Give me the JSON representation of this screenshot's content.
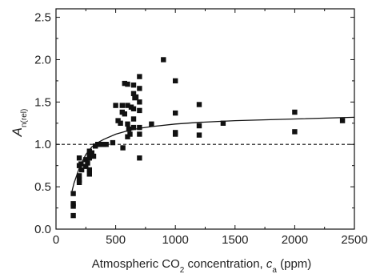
{
  "chart_data": {
    "type": "scatter",
    "xlabel": {
      "prefix": "Atmospheric CO",
      "sub1": "2",
      "middle": " concentration, ",
      "italic": "c",
      "sub2": "a",
      "suffix": "  (ppm)"
    },
    "ylabel": {
      "italic": "A",
      "sub": "n(rel)"
    },
    "xlim": [
      0,
      2500
    ],
    "ylim": [
      0.0,
      2.6
    ],
    "xticks": [
      0,
      500,
      1000,
      1500,
      2000,
      2500
    ],
    "xtick_labels": [
      "0",
      "500",
      "1000",
      "1500",
      "2000",
      "2500"
    ],
    "yticks": [
      0.0,
      0.5,
      1.0,
      1.5,
      2.0,
      2.5
    ],
    "ytick_labels": [
      "0.0",
      "0.5",
      "1.0",
      "1.5",
      "2.0",
      "2.5"
    ],
    "grid": false,
    "reference_line": {
      "y": 1.0,
      "style": "dashed"
    },
    "fit_curve": {
      "style": "solid",
      "points": [
        [
          135,
          0.45
        ],
        [
          150,
          0.54
        ],
        [
          175,
          0.64
        ],
        [
          200,
          0.74
        ],
        [
          250,
          0.88
        ],
        [
          300,
          0.97
        ],
        [
          350,
          1.02
        ],
        [
          400,
          1.06
        ],
        [
          500,
          1.12
        ],
        [
          600,
          1.16
        ],
        [
          700,
          1.19
        ],
        [
          800,
          1.21
        ],
        [
          1000,
          1.24
        ],
        [
          1200,
          1.26
        ],
        [
          1500,
          1.28
        ],
        [
          2000,
          1.3
        ],
        [
          2500,
          1.32
        ]
      ]
    },
    "series": [
      {
        "marker": "square",
        "color": "#111111",
        "points": [
          [
            145,
            0.42
          ],
          [
            145,
            0.3
          ],
          [
            145,
            0.27
          ],
          [
            145,
            0.16
          ],
          [
            195,
            0.84
          ],
          [
            195,
            0.75
          ],
          [
            195,
            0.63
          ],
          [
            195,
            0.58
          ],
          [
            195,
            0.55
          ],
          [
            210,
            0.77
          ],
          [
            215,
            0.7
          ],
          [
            250,
            0.82
          ],
          [
            250,
            0.74
          ],
          [
            265,
            0.78
          ],
          [
            280,
            0.92
          ],
          [
            280,
            0.88
          ],
          [
            280,
            0.84
          ],
          [
            280,
            0.7
          ],
          [
            280,
            0.65
          ],
          [
            300,
            0.9
          ],
          [
            315,
            0.86
          ],
          [
            330,
            0.98
          ],
          [
            350,
            1.0
          ],
          [
            360,
            1.0
          ],
          [
            380,
            1.0
          ],
          [
            400,
            1.0
          ],
          [
            420,
            1.0
          ],
          [
            475,
            1.02
          ],
          [
            500,
            1.46
          ],
          [
            520,
            1.28
          ],
          [
            540,
            1.25
          ],
          [
            555,
            1.46
          ],
          [
            555,
            1.38
          ],
          [
            560,
            0.96
          ],
          [
            575,
            1.72
          ],
          [
            575,
            1.36
          ],
          [
            600,
            1.71
          ],
          [
            600,
            1.46
          ],
          [
            600,
            1.24
          ],
          [
            600,
            1.09
          ],
          [
            610,
            1.18
          ],
          [
            620,
            1.12
          ],
          [
            630,
            1.44
          ],
          [
            650,
            1.7
          ],
          [
            650,
            1.6
          ],
          [
            650,
            1.42
          ],
          [
            650,
            1.3
          ],
          [
            650,
            1.2
          ],
          [
            660,
            1.55
          ],
          [
            670,
            1.56
          ],
          [
            700,
            1.8
          ],
          [
            700,
            1.66
          ],
          [
            700,
            1.5
          ],
          [
            700,
            1.4
          ],
          [
            700,
            1.2
          ],
          [
            700,
            1.12
          ],
          [
            700,
            0.84
          ],
          [
            800,
            1.24
          ],
          [
            900,
            2.0
          ],
          [
            1000,
            1.75
          ],
          [
            1000,
            1.37
          ],
          [
            1000,
            1.14
          ],
          [
            1000,
            1.12
          ],
          [
            1200,
            1.47
          ],
          [
            1200,
            1.22
          ],
          [
            1200,
            1.11
          ],
          [
            1400,
            1.25
          ],
          [
            2000,
            1.38
          ],
          [
            2000,
            1.15
          ],
          [
            2400,
            1.28
          ]
        ]
      }
    ]
  }
}
